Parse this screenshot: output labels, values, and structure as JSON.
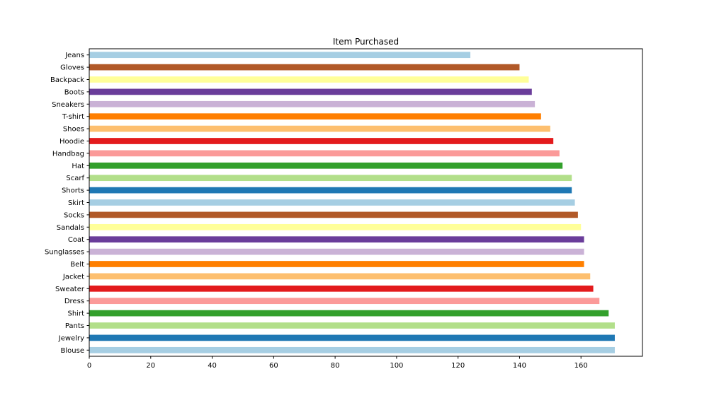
{
  "chart_data": {
    "type": "bar",
    "orientation": "horizontal",
    "title": "Item Purchased",
    "xlabel": "",
    "ylabel": "",
    "xlim": [
      0,
      180
    ],
    "x_ticks": [
      0,
      20,
      40,
      60,
      80,
      100,
      120,
      140,
      160
    ],
    "grid": false,
    "legend": "none",
    "categories": [
      "Blouse",
      "Jewelry",
      "Pants",
      "Shirt",
      "Dress",
      "Sweater",
      "Jacket",
      "Belt",
      "Sunglasses",
      "Coat",
      "Sandals",
      "Socks",
      "Skirt",
      "Shorts",
      "Scarf",
      "Hat",
      "Handbag",
      "Hoodie",
      "Shoes",
      "T-shirt",
      "Sneakers",
      "Boots",
      "Backpack",
      "Gloves",
      "Jeans"
    ],
    "values": [
      171,
      171,
      171,
      169,
      166,
      164,
      163,
      161,
      161,
      161,
      160,
      159,
      158,
      157,
      157,
      154,
      153,
      151,
      150,
      147,
      145,
      144,
      143,
      140,
      124
    ],
    "colors": [
      "#a6cee3",
      "#1f78b4",
      "#b2df8a",
      "#33a02c",
      "#fb9a99",
      "#e31a1c",
      "#fdbf6f",
      "#ff7f00",
      "#cab2d6",
      "#6a3d9a",
      "#ffff99",
      "#b15928"
    ]
  }
}
